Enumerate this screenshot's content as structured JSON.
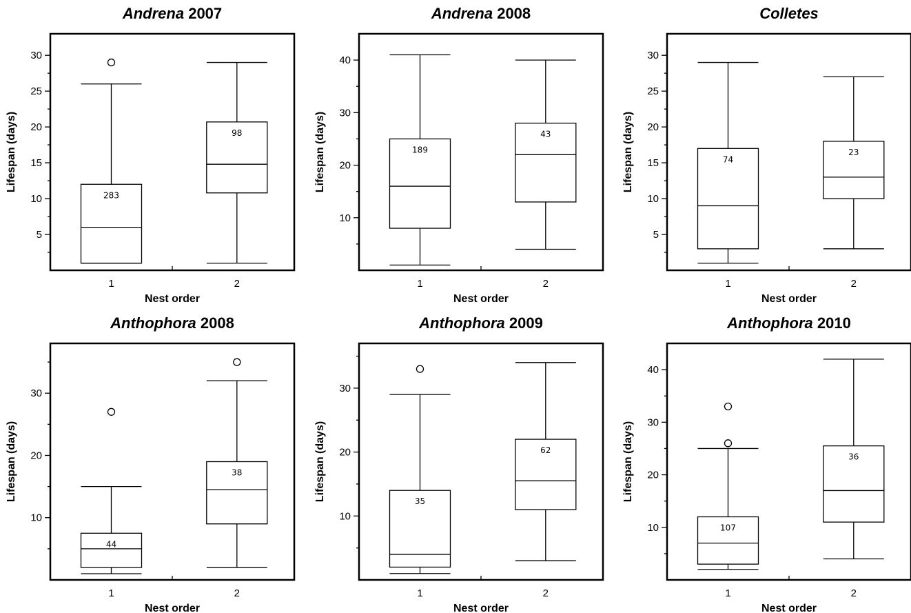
{
  "chart_data": [
    {
      "type": "box",
      "title": {
        "genus": "Andrena",
        "suffix": " 2007"
      },
      "xlabel": "Nest order",
      "ylabel": "Lifespan (days)",
      "ylim": [
        0,
        33
      ],
      "yticks_major": [
        5,
        10,
        15,
        20,
        25,
        30
      ],
      "yticks_minor": [
        2.5,
        7.5,
        12.5,
        17.5,
        22.5,
        27.5
      ],
      "categories": [
        "1",
        "2"
      ],
      "boxes": [
        {
          "category": "1",
          "min": 1,
          "q1": 1,
          "median": 6,
          "q3": 12,
          "max": 26,
          "outliers": [
            29
          ],
          "n": "283"
        },
        {
          "category": "2",
          "min": 1,
          "q1": 10.8,
          "median": 14.8,
          "q3": 20.7,
          "max": 29,
          "outliers": [],
          "n": "98"
        }
      ]
    },
    {
      "type": "box",
      "title": {
        "genus": "Andrena",
        "suffix": " 2008"
      },
      "xlabel": "Nest order",
      "ylabel": "Lifespan (days)",
      "ylim": [
        0,
        45
      ],
      "yticks_major": [
        10,
        20,
        30,
        40
      ],
      "yticks_minor": [
        5,
        15,
        25,
        35
      ],
      "categories": [
        "1",
        "2"
      ],
      "boxes": [
        {
          "category": "1",
          "min": 1,
          "q1": 8,
          "median": 16,
          "q3": 25,
          "max": 41,
          "outliers": [],
          "n": "189"
        },
        {
          "category": "2",
          "min": 4,
          "q1": 13,
          "median": 22,
          "q3": 28,
          "max": 40,
          "outliers": [],
          "n": "43"
        }
      ]
    },
    {
      "type": "box",
      "title": {
        "genus": "Colletes",
        "suffix": ""
      },
      "xlabel": "Nest order",
      "ylabel": "Lifespan (days)",
      "ylim": [
        0,
        33
      ],
      "yticks_major": [
        5,
        10,
        15,
        20,
        25,
        30
      ],
      "yticks_minor": [
        2.5,
        7.5,
        12.5,
        17.5,
        22.5,
        27.5
      ],
      "categories": [
        "1",
        "2"
      ],
      "boxes": [
        {
          "category": "1",
          "min": 1,
          "q1": 3,
          "median": 9,
          "q3": 17,
          "max": 29,
          "outliers": [],
          "n": "74"
        },
        {
          "category": "2",
          "min": 3,
          "q1": 10,
          "median": 13,
          "q3": 18,
          "max": 27,
          "outliers": [],
          "n": "23"
        }
      ]
    },
    {
      "type": "box",
      "title": {
        "genus": "Anthophora",
        "suffix": " 2008"
      },
      "xlabel": "Nest order",
      "ylabel": "Lifespan (days)",
      "ylim": [
        0,
        38
      ],
      "yticks_major": [
        10,
        20,
        30
      ],
      "yticks_minor": [
        5,
        15,
        25,
        35
      ],
      "categories": [
        "1",
        "2"
      ],
      "boxes": [
        {
          "category": "1",
          "min": 1,
          "q1": 2,
          "median": 5,
          "q3": 7.5,
          "max": 15,
          "outliers": [
            27
          ],
          "n": "44"
        },
        {
          "category": "2",
          "min": 2,
          "q1": 9,
          "median": 14.5,
          "q3": 19,
          "max": 32,
          "outliers": [
            35
          ],
          "n": "38"
        }
      ]
    },
    {
      "type": "box",
      "title": {
        "genus": "Anthophora",
        "suffix": " 2009"
      },
      "xlabel": "Nest order",
      "ylabel": "Lifespan (days)",
      "ylim": [
        0,
        37
      ],
      "yticks_major": [
        10,
        20,
        30
      ],
      "yticks_minor": [
        5,
        15,
        25,
        35
      ],
      "categories": [
        "1",
        "2"
      ],
      "boxes": [
        {
          "category": "1",
          "min": 1,
          "q1": 2,
          "median": 4,
          "q3": 14,
          "max": 29,
          "outliers": [
            33
          ],
          "n": "35"
        },
        {
          "category": "2",
          "min": 3,
          "q1": 11,
          "median": 15.5,
          "q3": 22,
          "max": 34,
          "outliers": [],
          "n": "62"
        }
      ]
    },
    {
      "type": "box",
      "title": {
        "genus": "Anthophora",
        "suffix": " 2010"
      },
      "xlabel": "Nest order",
      "ylabel": "Lifespan (days)",
      "ylim": [
        0,
        45
      ],
      "yticks_major": [
        10,
        20,
        30,
        40
      ],
      "yticks_minor": [
        5,
        15,
        25,
        35
      ],
      "categories": [
        "1",
        "2"
      ],
      "boxes": [
        {
          "category": "1",
          "min": 2,
          "q1": 3,
          "median": 7,
          "q3": 12,
          "max": 25,
          "outliers": [
            26,
            33
          ],
          "n": "107"
        },
        {
          "category": "2",
          "min": 4,
          "q1": 11,
          "median": 17,
          "q3": 25.5,
          "max": 42,
          "outliers": [],
          "n": "36"
        }
      ]
    }
  ]
}
